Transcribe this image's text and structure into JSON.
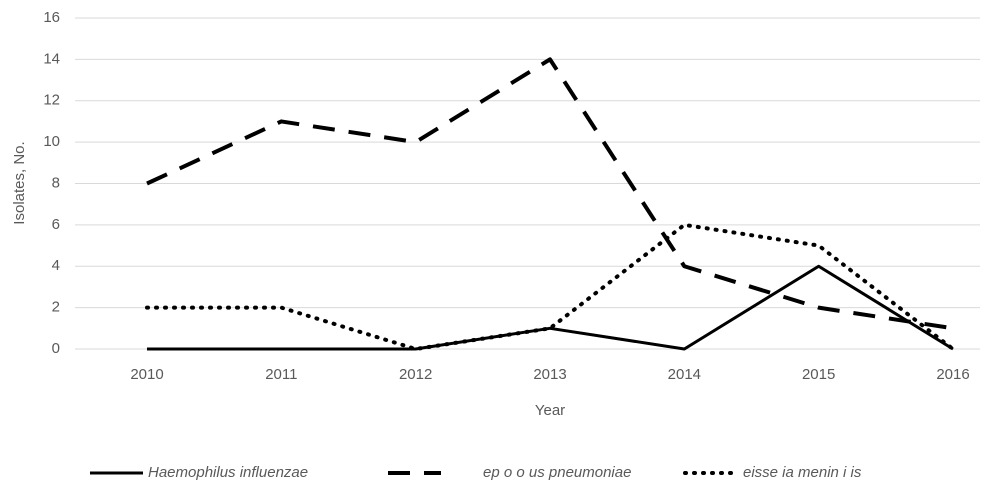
{
  "chart_data": {
    "type": "line",
    "x_label": "Year",
    "y_label": "Isolates, No.",
    "categories": [
      "2010",
      "2011",
      "2012",
      "2013",
      "2014",
      "2015",
      "2016"
    ],
    "series": [
      {
        "name": "Haemophilus influenzae",
        "color": "#000000",
        "style": "solid",
        "values": [
          0,
          0,
          0,
          1,
          0,
          4,
          0
        ]
      },
      {
        "name": "ep o o us pneumoniae",
        "color": "#000000",
        "style": "dashed",
        "values": [
          8,
          11,
          10,
          14,
          4,
          2,
          1
        ]
      },
      {
        "name": "eisse ia menin i is",
        "color": "#000000",
        "style": "dotted",
        "values": [
          2,
          2,
          0,
          1,
          6,
          5,
          0
        ]
      }
    ],
    "ylim": [
      0,
      16
    ],
    "yticks": [
      0,
      2,
      4,
      6,
      8,
      10,
      12,
      14,
      16
    ],
    "grid": true,
    "legend": "bottom"
  }
}
